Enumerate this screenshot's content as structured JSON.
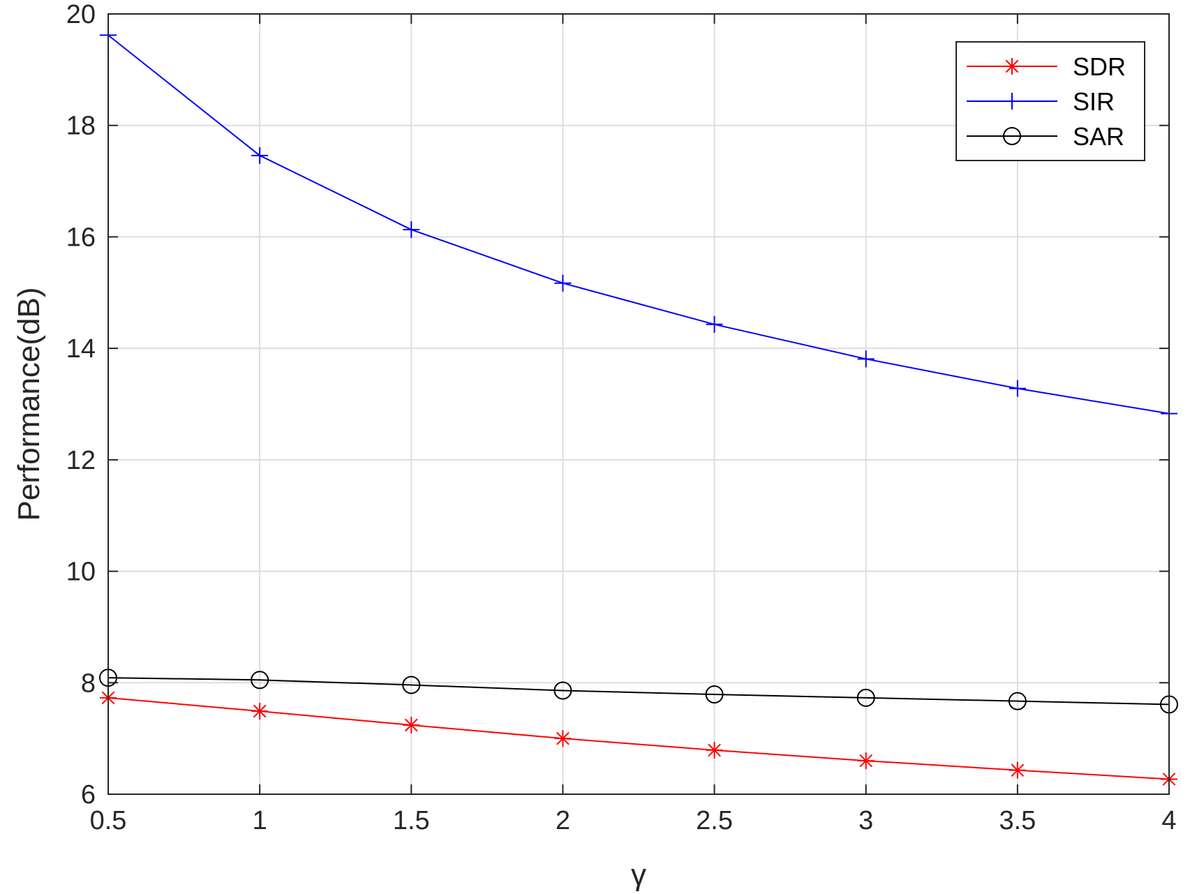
{
  "chart_data": {
    "type": "line",
    "xlabel": "γ",
    "ylabel": "Performance(dB)",
    "x": [
      0.5,
      1,
      1.5,
      2,
      2.5,
      3,
      3.5,
      4
    ],
    "xlim": [
      0.5,
      4
    ],
    "ylim": [
      6,
      20
    ],
    "xticks": [
      "0.5",
      "1",
      "1.5",
      "2",
      "2.5",
      "3",
      "3.5",
      "4"
    ],
    "yticks": [
      "6",
      "8",
      "10",
      "12",
      "14",
      "16",
      "18",
      "20"
    ],
    "grid": true,
    "legend_position": "top-right",
    "series": [
      {
        "name": "SDR",
        "color": "#ff0000",
        "marker": "asterisk",
        "values": [
          7.73,
          7.49,
          7.24,
          7.0,
          6.79,
          6.6,
          6.43,
          6.27
        ]
      },
      {
        "name": "SIR",
        "color": "#0000ff",
        "marker": "plus",
        "values": [
          19.62,
          17.46,
          16.13,
          15.17,
          14.43,
          13.81,
          13.28,
          12.83
        ]
      },
      {
        "name": "SAR",
        "color": "#000000",
        "marker": "circle",
        "values": [
          8.09,
          8.05,
          7.96,
          7.86,
          7.79,
          7.73,
          7.67,
          7.61
        ]
      }
    ]
  }
}
